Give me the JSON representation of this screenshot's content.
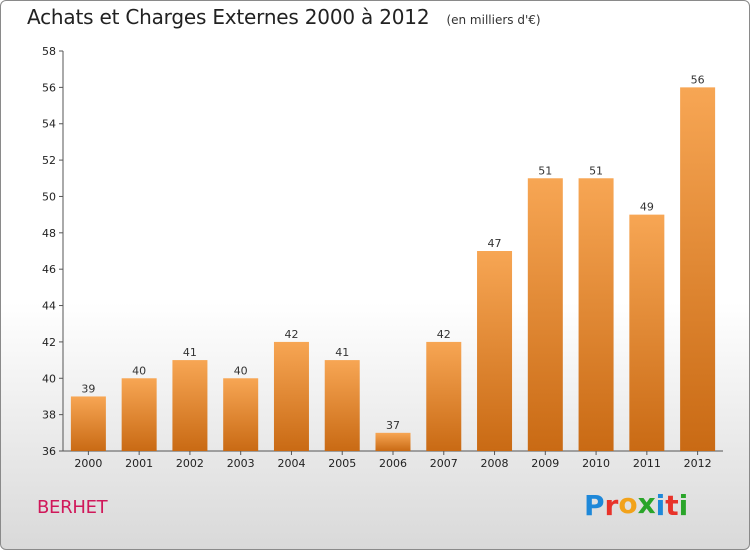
{
  "title": "Achats et Charges Externes 2000 à 2012",
  "subtitle": "(en milliers d'€)",
  "commune": "BERHET",
  "logo": {
    "letters": [
      "P",
      "r",
      "o",
      "x",
      "i",
      "t",
      "i"
    ],
    "colors": [
      "#1e88d9",
      "#e8332a",
      "#f2a21a",
      "#2aa52a",
      "#1e88d9",
      "#e8332a",
      "#2aa52a"
    ]
  },
  "colors": {
    "bar_top": "#f7a654",
    "bar_bottom": "#c96a14",
    "commune": "#d0185a"
  },
  "chart_data": {
    "type": "bar",
    "categories": [
      "2000",
      "2001",
      "2002",
      "2003",
      "2004",
      "2005",
      "2006",
      "2007",
      "2008",
      "2009",
      "2010",
      "2011",
      "2012"
    ],
    "values": [
      39,
      40,
      41,
      40,
      42,
      41,
      37,
      42,
      47,
      51,
      51,
      49,
      56
    ],
    "ylim": [
      36,
      58
    ],
    "yticks": [
      36,
      38,
      40,
      42,
      44,
      46,
      48,
      50,
      52,
      54,
      56,
      58
    ],
    "grid": false
  }
}
